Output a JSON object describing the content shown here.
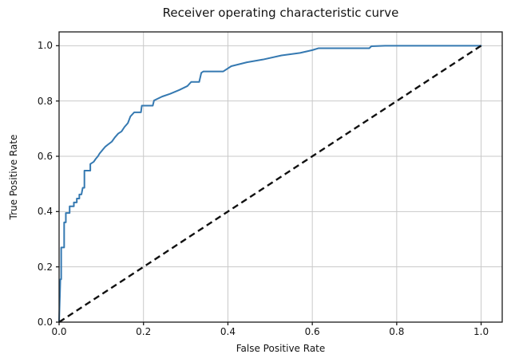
{
  "chart_data": {
    "type": "line",
    "title": "Receiver operating characteristic curve",
    "xlabel": "False Positive Rate",
    "ylabel": "True Positive Rate",
    "xlim": [
      0.0,
      1.05
    ],
    "ylim": [
      0.0,
      1.05
    ],
    "xticks": [
      0.0,
      0.2,
      0.4,
      0.6,
      0.8,
      1.0
    ],
    "yticks": [
      0.0,
      0.2,
      0.4,
      0.6,
      0.8,
      1.0
    ],
    "xtick_labels": [
      "0.0",
      "0.2",
      "0.4",
      "0.6",
      "0.8",
      "1.0"
    ],
    "ytick_labels": [
      "0.0",
      "0.2",
      "0.4",
      "0.6",
      "0.8",
      "1.0"
    ],
    "grid": true,
    "legend": null,
    "colors": {
      "roc_curve": "#3579b1",
      "chance_line": "#111111",
      "gridline": "#c9c9c9",
      "spine": "#1a1a1a",
      "text": "#141414",
      "background": "#ffffff"
    },
    "series": [
      {
        "name": "ROC curve",
        "slug": "roc-curve-line",
        "color": "#3579b1",
        "style": "solid",
        "width": 2,
        "points": [
          [
            0.0,
            0.0
          ],
          [
            0.002,
            0.1
          ],
          [
            0.003,
            0.155
          ],
          [
            0.005,
            0.155
          ],
          [
            0.005,
            0.27
          ],
          [
            0.012,
            0.27
          ],
          [
            0.012,
            0.361
          ],
          [
            0.016,
            0.361
          ],
          [
            0.016,
            0.395
          ],
          [
            0.025,
            0.395
          ],
          [
            0.025,
            0.419
          ],
          [
            0.035,
            0.419
          ],
          [
            0.035,
            0.433
          ],
          [
            0.042,
            0.433
          ],
          [
            0.042,
            0.447
          ],
          [
            0.048,
            0.447
          ],
          [
            0.048,
            0.462
          ],
          [
            0.053,
            0.462
          ],
          [
            0.056,
            0.486
          ],
          [
            0.06,
            0.486
          ],
          [
            0.06,
            0.548
          ],
          [
            0.074,
            0.548
          ],
          [
            0.074,
            0.572
          ],
          [
            0.082,
            0.58
          ],
          [
            0.087,
            0.591
          ],
          [
            0.092,
            0.6
          ],
          [
            0.096,
            0.61
          ],
          [
            0.104,
            0.625
          ],
          [
            0.109,
            0.634
          ],
          [
            0.118,
            0.645
          ],
          [
            0.125,
            0.653
          ],
          [
            0.132,
            0.668
          ],
          [
            0.14,
            0.682
          ],
          [
            0.148,
            0.69
          ],
          [
            0.155,
            0.706
          ],
          [
            0.163,
            0.72
          ],
          [
            0.169,
            0.744
          ],
          [
            0.178,
            0.759
          ],
          [
            0.194,
            0.759
          ],
          [
            0.196,
            0.783
          ],
          [
            0.222,
            0.783
          ],
          [
            0.225,
            0.802
          ],
          [
            0.244,
            0.816
          ],
          [
            0.263,
            0.826
          ],
          [
            0.285,
            0.84
          ],
          [
            0.304,
            0.854
          ],
          [
            0.313,
            0.869
          ],
          [
            0.332,
            0.869
          ],
          [
            0.337,
            0.902
          ],
          [
            0.342,
            0.907
          ],
          [
            0.389,
            0.907
          ],
          [
            0.408,
            0.926
          ],
          [
            0.445,
            0.94
          ],
          [
            0.483,
            0.95
          ],
          [
            0.527,
            0.965
          ],
          [
            0.571,
            0.974
          ],
          [
            0.6,
            0.984
          ],
          [
            0.615,
            0.991
          ],
          [
            0.735,
            0.991
          ],
          [
            0.74,
            0.998
          ],
          [
            0.772,
            1.0
          ],
          [
            1.0,
            1.0
          ]
        ]
      },
      {
        "name": "Chance diagonal",
        "slug": "chance-diagonal-line",
        "color": "#111111",
        "style": "dashed",
        "width": 2.4,
        "points": [
          [
            0.0,
            0.0
          ],
          [
            1.0,
            1.0
          ]
        ]
      }
    ]
  }
}
